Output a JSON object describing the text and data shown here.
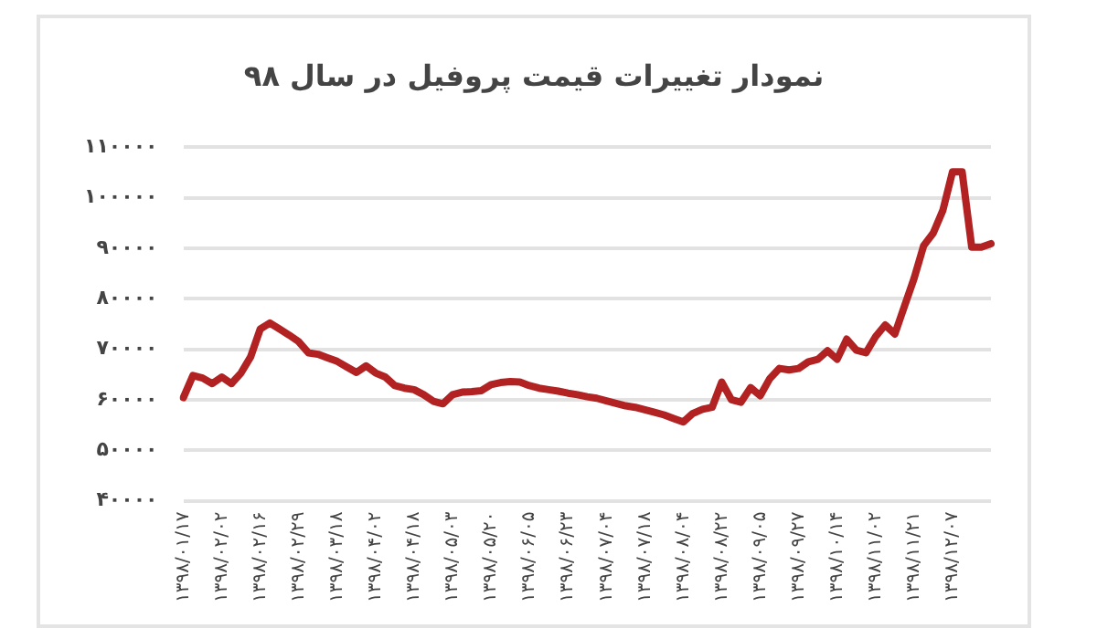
{
  "chart_data": {
    "type": "line",
    "title": "نمودار تغییرات قیمت پروفیل در سال ۹۸",
    "categories": [
      "۱۳۹۸/۰۱/۱۷",
      null,
      null,
      null,
      "۱۳۹۸/۰۲/۰۲",
      null,
      null,
      null,
      "۱۳۹۸/۰۲/۱۶",
      null,
      null,
      null,
      "۱۳۹۸/۰۲/۲۹",
      null,
      null,
      null,
      "۱۳۹۸/۰۳/۱۸",
      null,
      null,
      null,
      "۱۳۹۸/۰۴/۰۲",
      null,
      null,
      null,
      "۱۳۹۸/۰۴/۱۸",
      null,
      null,
      null,
      "۱۳۹۸/۰۵/۰۳",
      null,
      null,
      null,
      "۱۳۹۸/۰۵/۲۰",
      null,
      null,
      null,
      "۱۳۹۸/۰۶/۰۵",
      null,
      null,
      null,
      "۱۳۹۸/۰۶/۲۳",
      null,
      null,
      null,
      "۱۳۹۸/۰۷/۰۴",
      null,
      null,
      null,
      "۱۳۹۸/۰۷/۱۸",
      null,
      null,
      null,
      "۱۳۹۸/۰۸/۰۴",
      null,
      null,
      null,
      "۱۳۹۸/۰۸/۲۲",
      null,
      null,
      null,
      "۱۳۹۸/۰۹/۰۵",
      null,
      null,
      null,
      "۱۳۹۸/۰۹/۲۷",
      null,
      null,
      null,
      "۱۳۹۸/۱۰/۱۴",
      null,
      null,
      null,
      "۱۳۹۸/۱۱/۰۲",
      null,
      null,
      null,
      "۱۳۹۸/۱۱/۲۱",
      null,
      null,
      null,
      "۱۳۹۸/۱۲/۰۷",
      null,
      null,
      null,
      null
    ],
    "series": [
      {
        "color": "#b22222",
        "values": [
          60400,
          64800,
          64300,
          63200,
          64500,
          63200,
          65300,
          68500,
          74000,
          75200,
          74000,
          72800,
          71500,
          69300,
          69000,
          68300,
          67600,
          66500,
          65400,
          66700,
          65300,
          64500,
          62800,
          62300,
          62000,
          61000,
          59700,
          59200,
          61000,
          61500,
          61600,
          61800,
          63000,
          63400,
          63600,
          63500,
          62800,
          62300,
          62000,
          61700,
          61300,
          61000,
          60600,
          60300,
          59800,
          59300,
          58800,
          58500,
          58000,
          57500,
          57000,
          56300,
          55600,
          57300,
          58100,
          58500,
          63500,
          60000,
          59500,
          62400,
          60800,
          64200,
          66200,
          65900,
          66200,
          67500,
          68000,
          69700,
          68000,
          72000,
          69800,
          69300,
          72500,
          74800,
          73000,
          78500,
          84000,
          90500,
          93000,
          97500,
          105100,
          105100,
          90200,
          90200,
          90900
        ]
      }
    ],
    "ylim": [
      40000,
      110000
    ],
    "yticks": [
      {
        "value": 40000,
        "label": "۴۰۰۰۰"
      },
      {
        "value": 50000,
        "label": "۵۰۰۰۰"
      },
      {
        "value": 60000,
        "label": "۶۰۰۰۰"
      },
      {
        "value": 70000,
        "label": "۷۰۰۰۰"
      },
      {
        "value": 80000,
        "label": "۸۰۰۰۰"
      },
      {
        "value": 90000,
        "label": "۹۰۰۰۰"
      },
      {
        "value": 100000,
        "label": "۱۰۰۰۰۰"
      },
      {
        "value": 110000,
        "label": "۱۱۰۰۰۰"
      }
    ],
    "grid": "y",
    "marker": "none",
    "line_style": "solid",
    "legend": false
  }
}
